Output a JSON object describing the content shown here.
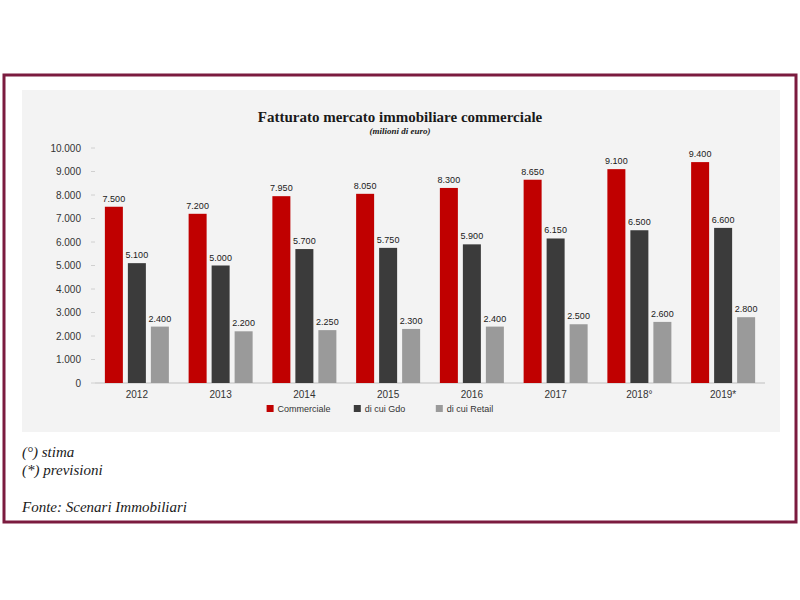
{
  "chart_data": {
    "type": "bar",
    "title": "Fatturato mercato immobiliare commerciale",
    "subtitle": "(milioni di euro)",
    "categories": [
      "2012",
      "2013",
      "2014",
      "2015",
      "2016",
      "2017",
      "2018°",
      "2019*"
    ],
    "series": [
      {
        "name": "Commerciale",
        "color": "#c00000",
        "values": [
          7500,
          7200,
          7950,
          8050,
          8300,
          8650,
          9100,
          9400
        ],
        "value_labels": [
          "7.500",
          "7.200",
          "7.950",
          "8.050",
          "8.300",
          "8.650",
          "9.100",
          "9.400"
        ]
      },
      {
        "name": "di cui Gdo",
        "color": "#3b3b3b",
        "values": [
          5100,
          5000,
          5700,
          5750,
          5900,
          6150,
          6500,
          6600
        ],
        "value_labels": [
          "5.100",
          "5.000",
          "5.700",
          "5.750",
          "5.900",
          "6.150",
          "6.500",
          "6.600"
        ]
      },
      {
        "name": "di cui Retail",
        "color": "#9a9a9a",
        "values": [
          2400,
          2200,
          2250,
          2300,
          2400,
          2500,
          2600,
          2800
        ],
        "value_labels": [
          "2.400",
          "2.200",
          "2.250",
          "2.300",
          "2.400",
          "2.500",
          "2.600",
          "2.800"
        ]
      }
    ],
    "ylim": [
      0,
      10000
    ],
    "yticks": [
      0,
      {
        "value": 1000,
        "label": "1.000"
      },
      {
        "value": 2000,
        "label": "2.000"
      },
      {
        "value": 3000,
        "label": "3.000"
      },
      {
        "value": 4000,
        "label": "4.000"
      },
      {
        "value": 5000,
        "label": "5.000"
      },
      {
        "value": 6000,
        "label": "6.000"
      },
      {
        "value": 7000,
        "label": "7.000"
      },
      {
        "value": 8000,
        "label": "8.000"
      },
      {
        "value": 9000,
        "label": "9.000"
      },
      {
        "value": 10000,
        "label": "10.000"
      }
    ],
    "grid": false,
    "legend": "bottom",
    "data_labels": true,
    "annotations": [
      "(°) stima",
      "(*) previsioni",
      "Fonte: Scenari Immobiliari"
    ]
  }
}
